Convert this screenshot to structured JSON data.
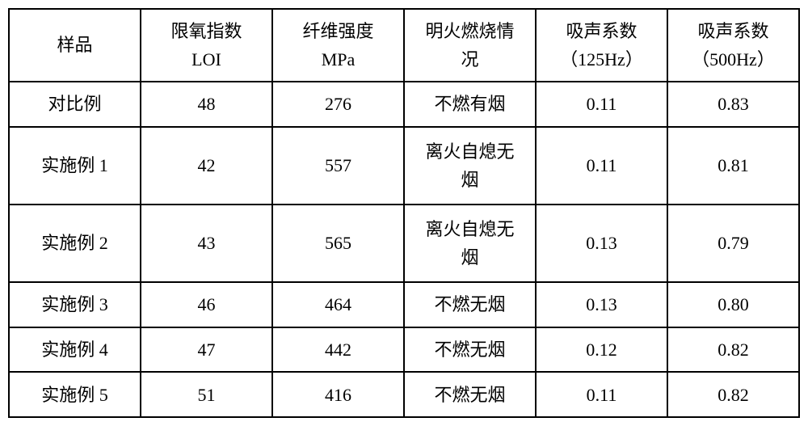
{
  "table": {
    "columns": [
      {
        "label": "样品"
      },
      {
        "label_line1": "限氧指数",
        "label_line2": "LOI"
      },
      {
        "label_line1": "纤维强度",
        "label_line2": "MPa"
      },
      {
        "label_line1": "明火燃烧情",
        "label_line2": "况"
      },
      {
        "label_line1": "吸声系数",
        "label_line2": "（125Hz）"
      },
      {
        "label_line1": "吸声系数",
        "label_line2": "（500Hz）"
      }
    ],
    "rows": [
      {
        "sample": "对比例",
        "loi": "48",
        "mpa": "276",
        "burn": "不燃有烟",
        "abs125": "0.11",
        "abs500": "0.83",
        "tall": false
      },
      {
        "sample": "实施例 1",
        "loi": "42",
        "mpa": "557",
        "burn_line1": "离火自熄无",
        "burn_line2": "烟",
        "abs125": "0.11",
        "abs500": "0.81",
        "tall": true
      },
      {
        "sample": "实施例 2",
        "loi": "43",
        "mpa": "565",
        "burn_line1": "离火自熄无",
        "burn_line2": "烟",
        "abs125": "0.13",
        "abs500": "0.79",
        "tall": true
      },
      {
        "sample": "实施例 3",
        "loi": "46",
        "mpa": "464",
        "burn": "不燃无烟",
        "abs125": "0.13",
        "abs500": "0.80",
        "tall": false
      },
      {
        "sample": "实施例 4",
        "loi": "47",
        "mpa": "442",
        "burn": "不燃无烟",
        "abs125": "0.12",
        "abs500": "0.82",
        "tall": false
      },
      {
        "sample": "实施例 5",
        "loi": "51",
        "mpa": "416",
        "burn": "不燃无烟",
        "abs125": "0.11",
        "abs500": "0.82",
        "tall": false
      }
    ],
    "border_color": "#000000",
    "background_color": "#ffffff",
    "font_size": 22
  }
}
